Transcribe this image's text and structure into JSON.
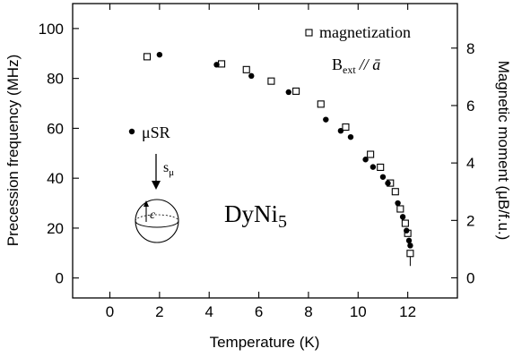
{
  "chart_data": {
    "type": "scatter",
    "xlabel": "Temperature (K)",
    "ylabel_left": "Precession frequency (MHz)",
    "ylabel_right": "Magnetic moment (μB/f.u.)",
    "xlim": [
      -1.5,
      14
    ],
    "ylim_left": [
      -8,
      110
    ],
    "ylim_right": [
      -0.7,
      9.55
    ],
    "x_ticks": [
      0,
      2,
      4,
      6,
      8,
      10,
      12
    ],
    "y_ticks_left": [
      0,
      20,
      40,
      60,
      80,
      100
    ],
    "y_ticks_right": [
      0,
      2,
      4,
      6,
      8
    ],
    "grid": false,
    "legend_placement": "top-right",
    "series": [
      {
        "name": "μSR",
        "axis": "left",
        "marker": "filled-circle",
        "x": [
          2.0,
          4.3,
          5.7,
          7.2,
          8.7,
          9.3,
          9.7,
          10.3,
          10.6,
          11.0,
          11.2,
          11.6,
          11.8,
          11.95,
          12.05,
          12.1
        ],
        "y": [
          89.5,
          85.5,
          81.0,
          74.5,
          63.5,
          59.0,
          56.5,
          47.5,
          44.5,
          40.5,
          38.0,
          30.0,
          24.5,
          19.0,
          15.0,
          13.0
        ]
      },
      {
        "name": "magnetization",
        "axis": "right",
        "marker": "open-square",
        "x": [
          1.5,
          4.5,
          5.5,
          6.5,
          7.5,
          8.5,
          9.5,
          10.5,
          10.9,
          11.3,
          11.5,
          11.7,
          11.9,
          12.0,
          12.1
        ],
        "y": [
          7.7,
          7.45,
          7.25,
          6.85,
          6.5,
          6.05,
          5.25,
          4.3,
          3.85,
          3.3,
          3.0,
          2.4,
          1.9,
          1.55,
          0.85
        ]
      }
    ],
    "annotations": {
      "compound_main": "DyNi",
      "compound_sub": "5",
      "field_main": "B",
      "field_sub": "ext",
      "field_rel": "// ā",
      "spin_label": "s",
      "spin_sub": "μ",
      "axis_c": "c"
    }
  }
}
